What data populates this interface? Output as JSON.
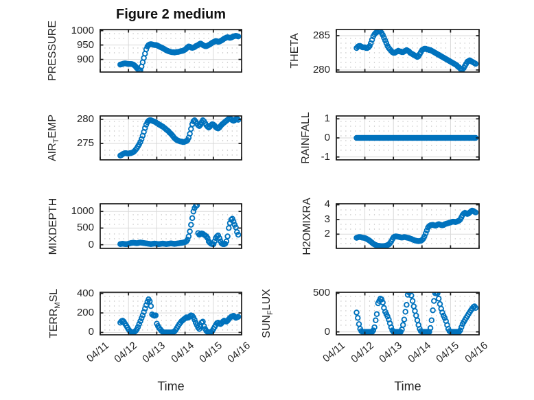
{
  "figure": {
    "title": "Figure 2 medium",
    "xlabel": "Time",
    "marker_color": "#0072BD",
    "axis_color": "#1a1a1a",
    "text_color": "#262626",
    "major_grid_color": "#d9d9d9",
    "minor_grid_color": "#bfbfbf",
    "background": "#ffffff"
  },
  "chart_data": {
    "type": "scatter",
    "marker": "open-circle",
    "grid": "major-solid-plus-minor-dotted",
    "x_axis": {
      "label": "Time",
      "tick_labels": [
        "04/11",
        "04/12",
        "04/13",
        "04/14",
        "04/15",
        "04/16"
      ],
      "xlim_days": [
        0,
        5
      ],
      "x_days": [
        0.71,
        0.752,
        0.793,
        0.835,
        0.877,
        0.919,
        0.96,
        1.002,
        1.044,
        1.085,
        1.127,
        1.169,
        1.21,
        1.252,
        1.294,
        1.336,
        1.377,
        1.419,
        1.461,
        1.502,
        1.544,
        1.586,
        1.627,
        1.669,
        1.711,
        1.753,
        1.794,
        1.836,
        1.878,
        1.919,
        1.961,
        2.003,
        2.044,
        2.086,
        2.128,
        2.17,
        2.211,
        2.253,
        2.295,
        2.336,
        2.378,
        2.42,
        2.461,
        2.503,
        2.545,
        2.587,
        2.628,
        2.67,
        2.712,
        2.753,
        2.795,
        2.837,
        2.878,
        2.92,
        2.962,
        3.004,
        3.045,
        3.087,
        3.129,
        3.17,
        3.212,
        3.254,
        3.295,
        3.337,
        3.379,
        3.421,
        3.462,
        3.504,
        3.546,
        3.587,
        3.629,
        3.671,
        3.712,
        3.754,
        3.796,
        3.838,
        3.879,
        3.921,
        3.963,
        4.004,
        4.046,
        4.088,
        4.129,
        4.171,
        4.213,
        4.255,
        4.296,
        4.338,
        4.38,
        4.421,
        4.463,
        4.505,
        4.546,
        4.588,
        4.63,
        4.672,
        4.713,
        4.755,
        4.797,
        4.838,
        4.88
      ]
    },
    "subplots": [
      {
        "id": "pressure",
        "name": "PRESSURE",
        "row": 0,
        "col": 0,
        "ylabel": {
          "pre": "PRESSURE",
          "sub": "",
          "post": ""
        },
        "yticks": [
          900,
          950,
          1000
        ],
        "ylim": [
          856,
          1004
        ],
        "y": [
          882,
          883,
          884.5,
          885.5,
          886,
          885.5,
          884.5,
          884,
          884,
          884,
          883.5,
          882,
          879,
          875,
          870,
          866,
          863,
          862,
          875,
          890,
          905,
          920,
          935,
          945,
          950,
          952,
          953,
          952,
          951,
          950,
          950,
          949,
          947,
          945,
          943,
          941,
          939,
          937,
          934,
          932,
          930,
          928,
          927,
          926,
          925,
          925,
          924,
          925,
          926,
          926,
          927,
          928,
          929,
          930,
          932,
          934,
          938,
          942,
          945,
          944,
          941,
          940,
          941,
          943,
          946,
          948,
          950,
          953,
          955,
          953,
          950,
          948,
          946,
          946,
          948,
          950,
          952,
          955,
          958,
          960,
          962,
          964,
          963,
          961,
          962,
          964,
          966,
          969,
          972,
          974,
          976,
          977,
          976,
          975,
          976,
          978,
          980,
          981,
          982,
          981,
          980
        ]
      },
      {
        "id": "theta",
        "name": "THETA",
        "row": 0,
        "col": 1,
        "ylabel": {
          "pre": "THETA",
          "sub": "",
          "post": ""
        },
        "yticks": [
          280,
          285
        ],
        "ylim": [
          279.7,
          285.9
        ],
        "y": [
          283.2,
          283.4,
          283.5,
          283.5,
          283.4,
          283.3,
          283.3,
          283.3,
          283.2,
          283.2,
          283.3,
          283.5,
          283.9,
          284.4,
          284.9,
          285.2,
          285.4,
          285.5,
          285.6,
          285.7,
          285.6,
          285.4,
          285.1,
          284.7,
          284.3,
          283.9,
          283.5,
          283.2,
          283.0,
          282.8,
          282.6,
          282.5,
          282.5,
          282.6,
          282.7,
          282.8,
          282.7,
          282.7,
          282.6,
          282.6,
          282.7,
          282.8,
          282.9,
          282.8,
          282.7,
          282.5,
          282.4,
          282.3,
          282.2,
          282.1,
          282.0,
          281.9,
          282.0,
          282.3,
          282.6,
          282.9,
          283.0,
          283.1,
          283.1,
          283.0,
          283.0,
          282.9,
          282.9,
          282.8,
          282.7,
          282.6,
          282.5,
          282.4,
          282.3,
          282.2,
          282.1,
          282.0,
          281.9,
          281.8,
          281.7,
          281.6,
          281.5,
          281.4,
          281.3,
          281.2,
          281.1,
          281.0,
          280.9,
          280.8,
          280.7,
          280.5,
          280.4,
          280.2,
          280.1,
          280.1,
          280.3,
          280.6,
          280.9,
          281.2,
          281.3,
          281.4,
          281.3,
          281.2,
          281.1,
          281.0,
          280.9
        ]
      },
      {
        "id": "air_temp",
        "name": "AIR_TEMP",
        "row": 1,
        "col": 0,
        "ylabel": {
          "pre": "AIR",
          "sub": "T",
          "post": "EMP"
        },
        "yticks": [
          275,
          280
        ],
        "ylim": [
          271.6,
          280.7
        ],
        "y": [
          272.5,
          272.6,
          272.8,
          272.9,
          273.0,
          273.0,
          272.9,
          272.9,
          273.0,
          273.0,
          273.1,
          273.2,
          273.4,
          273.7,
          274.0,
          274.4,
          274.8,
          275.3,
          275.9,
          276.6,
          277.4,
          278.2,
          278.9,
          279.4,
          279.7,
          279.8,
          279.8,
          279.7,
          279.6,
          279.5,
          279.4,
          279.2,
          279.1,
          278.9,
          278.8,
          278.6,
          278.5,
          278.3,
          278.1,
          277.9,
          277.7,
          277.5,
          277.2,
          277.0,
          276.7,
          276.4,
          276.1,
          275.9,
          275.7,
          275.6,
          275.5,
          275.4,
          275.4,
          275.3,
          275.3,
          275.4,
          275.5,
          275.7,
          276.2,
          277.0,
          278.0,
          279.0,
          279.6,
          279.8,
          279.5,
          279.1,
          278.8,
          278.6,
          278.9,
          279.4,
          279.8,
          279.6,
          279.2,
          278.8,
          278.5,
          278.3,
          278.5,
          278.8,
          279.0,
          278.9,
          278.7,
          278.4,
          278.2,
          278.1,
          278.3,
          278.6,
          278.9,
          279.1,
          279.3,
          279.5,
          279.7,
          279.9,
          280.1,
          280.2,
          280.0,
          279.8,
          279.7,
          279.8,
          280.0,
          280.1,
          279.9
        ]
      },
      {
        "id": "rainfall",
        "name": "RAINFALL",
        "row": 1,
        "col": 1,
        "ylabel": {
          "pre": "RAINFALL",
          "sub": "",
          "post": ""
        },
        "yticks": [
          -1,
          0,
          1
        ],
        "ylim": [
          -1.15,
          1.15
        ],
        "y": [
          0,
          0,
          0,
          0,
          0,
          0,
          0,
          0,
          0,
          0,
          0,
          0,
          0,
          0,
          0,
          0,
          0,
          0,
          0,
          0,
          0,
          0,
          0,
          0,
          0,
          0,
          0,
          0,
          0,
          0,
          0,
          0,
          0,
          0,
          0,
          0,
          0,
          0,
          0,
          0,
          0,
          0,
          0,
          0,
          0,
          0,
          0,
          0,
          0,
          0,
          0,
          0,
          0,
          0,
          0,
          0,
          0,
          0,
          0,
          0,
          0,
          0,
          0,
          0,
          0,
          0,
          0,
          0,
          0,
          0,
          0,
          0,
          0,
          0,
          0,
          0,
          0,
          0,
          0,
          0,
          0,
          0,
          0,
          0,
          0,
          0,
          0,
          0,
          0,
          0,
          0,
          0,
          0,
          0,
          0,
          0,
          0,
          0,
          0,
          0,
          0
        ]
      },
      {
        "id": "mixdepth",
        "name": "MIXDEPTH",
        "row": 2,
        "col": 0,
        "ylabel": {
          "pre": "MIXDEPTH",
          "sub": "",
          "post": ""
        },
        "yticks": [
          0,
          500,
          1000
        ],
        "ylim": [
          -110,
          1230
        ],
        "y": [
          20,
          25,
          30,
          25,
          20,
          15,
          20,
          30,
          40,
          50,
          55,
          60,
          55,
          50,
          45,
          50,
          60,
          65,
          60,
          55,
          50,
          45,
          40,
          35,
          30,
          25,
          20,
          25,
          30,
          35,
          30,
          25,
          20,
          20,
          25,
          30,
          35,
          30,
          25,
          20,
          25,
          30,
          35,
          40,
          35,
          30,
          25,
          30,
          35,
          40,
          45,
          50,
          55,
          60,
          70,
          80,
          100,
          150,
          250,
          400,
          600,
          800,
          1000,
          1100,
          1160,
          1180,
          350,
          300,
          320,
          340,
          330,
          300,
          280,
          250,
          200,
          100,
          60,
          30,
          20,
          15,
          100,
          200,
          250,
          280,
          200,
          100,
          40,
          20,
          15,
          30,
          100,
          250,
          500,
          650,
          750,
          780,
          700,
          600,
          520,
          380,
          300
        ]
      },
      {
        "id": "h2omixra",
        "name": "H2OMIXRA",
        "row": 2,
        "col": 1,
        "ylabel": {
          "pre": "H2OMIXRA",
          "sub": "",
          "post": ""
        },
        "yticks": [
          2,
          3,
          4
        ],
        "ylim": [
          1.03,
          4.07
        ],
        "y": [
          1.75,
          1.78,
          1.8,
          1.8,
          1.78,
          1.76,
          1.75,
          1.73,
          1.7,
          1.65,
          1.6,
          1.55,
          1.48,
          1.42,
          1.35,
          1.3,
          1.26,
          1.23,
          1.21,
          1.2,
          1.19,
          1.18,
          1.18,
          1.19,
          1.2,
          1.22,
          1.25,
          1.3,
          1.38,
          1.5,
          1.65,
          1.78,
          1.83,
          1.85,
          1.84,
          1.82,
          1.8,
          1.78,
          1.77,
          1.78,
          1.8,
          1.79,
          1.77,
          1.75,
          1.73,
          1.7,
          1.67,
          1.63,
          1.6,
          1.57,
          1.55,
          1.53,
          1.52,
          1.53,
          1.55,
          1.6,
          1.7,
          1.85,
          2.05,
          2.25,
          2.45,
          2.55,
          2.6,
          2.62,
          2.63,
          2.6,
          2.58,
          2.6,
          2.65,
          2.68,
          2.65,
          2.62,
          2.6,
          2.62,
          2.67,
          2.7,
          2.73,
          2.75,
          2.78,
          2.8,
          2.83,
          2.85,
          2.84,
          2.82,
          2.85,
          2.88,
          2.92,
          3.0,
          3.15,
          3.3,
          3.4,
          3.45,
          3.42,
          3.38,
          3.4,
          3.48,
          3.55,
          3.6,
          3.58,
          3.52,
          3.48
        ]
      },
      {
        "id": "terr_msl",
        "name": "TERR_MSL",
        "row": 3,
        "col": 0,
        "ylabel": {
          "pre": "TERR",
          "sub": "M",
          "post": "SL"
        },
        "yticks": [
          0,
          200,
          400
        ],
        "ylim": [
          -25,
          412
        ],
        "y": [
          100,
          115,
          120,
          110,
          90,
          70,
          50,
          30,
          15,
          5,
          0,
          0,
          5,
          15,
          30,
          55,
          85,
          115,
          145,
          175,
          210,
          245,
          280,
          315,
          340,
          320,
          270,
          185,
          175,
          170,
          175,
          90,
          65,
          45,
          30,
          15,
          5,
          0,
          0,
          0,
          0,
          0,
          0,
          0,
          0,
          5,
          10,
          25,
          45,
          65,
          85,
          100,
          115,
          125,
          135,
          145,
          155,
          150,
          155,
          165,
          175,
          170,
          155,
          130,
          100,
          75,
          50,
          35,
          60,
          100,
          110,
          65,
          35,
          15,
          5,
          0,
          0,
          5,
          15,
          35,
          55,
          75,
          95,
          100,
          90,
          85,
          95,
          110,
          120,
          115,
          110,
          120,
          135,
          150,
          160,
          165,
          170,
          160,
          150,
          155,
          160
        ]
      },
      {
        "id": "sun_flux",
        "name": "SUN_FLUX",
        "row": 3,
        "col": 1,
        "ylabel": {
          "pre": "SUN",
          "sub": "F",
          "post": "LUX"
        },
        "yticks": [
          0,
          500
        ],
        "ylim": [
          -38,
          512
        ],
        "y": [
          250,
          180,
          100,
          40,
          10,
          0,
          0,
          0,
          0,
          0,
          0,
          0,
          0,
          0,
          20,
          60,
          150,
          230,
          370,
          400,
          430,
          420,
          380,
          310,
          260,
          230,
          200,
          160,
          110,
          60,
          20,
          0,
          0,
          0,
          0,
          0,
          0,
          0,
          30,
          90,
          160,
          260,
          350,
          480,
          510,
          520,
          470,
          400,
          330,
          270,
          210,
          150,
          90,
          40,
          10,
          0,
          0,
          0,
          0,
          0,
          0,
          0,
          50,
          150,
          280,
          400,
          500,
          510,
          500,
          430,
          360,
          300,
          250,
          210,
          180,
          140,
          90,
          40,
          10,
          0,
          0,
          0,
          0,
          0,
          0,
          0,
          0,
          20,
          60,
          100,
          130,
          155,
          180,
          205,
          230,
          255,
          280,
          300,
          320,
          330,
          310
        ]
      }
    ]
  }
}
